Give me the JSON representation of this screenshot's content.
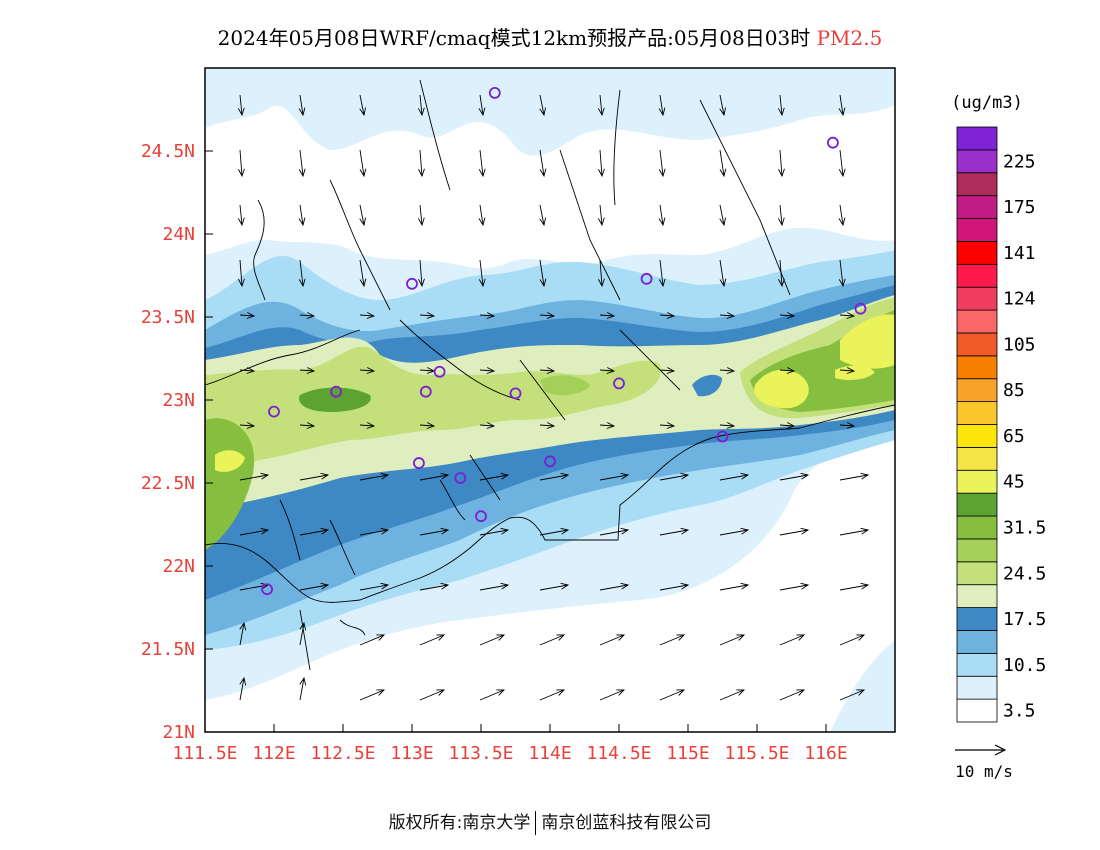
{
  "title": {
    "main": "2024年05月08日WRF/cmaq模式12km预报产品:05月08日03时",
    "species": "PM2.5",
    "species_color": "#e8403a"
  },
  "map": {
    "lon_ticks": [
      111.5,
      112,
      112.5,
      113,
      113.5,
      114,
      114.5,
      115,
      115.5,
      116
    ],
    "lon_labels": [
      "111.5E",
      "112E",
      "112.5E",
      "113E",
      "113.5E",
      "114E",
      "114.5E",
      "115E",
      "115.5E",
      "116E"
    ],
    "lat_ticks": [
      21,
      21.5,
      22,
      22.5,
      23,
      23.5,
      24,
      24.5
    ],
    "lat_labels": [
      "21N",
      "21.5N",
      "22N",
      "22.5N",
      "23N",
      "23.5N",
      "24N",
      "24.5N"
    ],
    "lon_range": [
      111.5,
      116.5
    ],
    "lat_range": [
      21,
      25
    ],
    "tick_label_color": "#e8403a",
    "stations": [
      {
        "lon": 113.6,
        "lat": 24.85
      },
      {
        "lon": 116.05,
        "lat": 24.55
      },
      {
        "lon": 113.0,
        "lat": 23.7
      },
      {
        "lon": 114.7,
        "lat": 23.73
      },
      {
        "lon": 116.25,
        "lat": 23.55
      },
      {
        "lon": 112.45,
        "lat": 23.05
      },
      {
        "lon": 112.0,
        "lat": 22.93
      },
      {
        "lon": 113.1,
        "lat": 23.05
      },
      {
        "lon": 113.2,
        "lat": 23.17
      },
      {
        "lon": 113.75,
        "lat": 23.04
      },
      {
        "lon": 114.5,
        "lat": 23.1
      },
      {
        "lon": 113.05,
        "lat": 22.62
      },
      {
        "lon": 113.35,
        "lat": 22.53
      },
      {
        "lon": 113.5,
        "lat": 22.3
      },
      {
        "lon": 114.0,
        "lat": 22.63
      },
      {
        "lon": 115.25,
        "lat": 22.78
      },
      {
        "lon": 111.95,
        "lat": 21.86
      }
    ],
    "station_color": "#7a1fd6"
  },
  "legend": {
    "unit": "(ug/m3)",
    "levels_bottom_to_top": [
      {
        "color": "#ffffff",
        "label": "3.5"
      },
      {
        "color": "#dcf1fb",
        "label": ""
      },
      {
        "color": "#a9dcf5",
        "label": "10.5"
      },
      {
        "color": "#6eb3e0",
        "label": ""
      },
      {
        "color": "#3e88c4",
        "label": "17.5"
      },
      {
        "color": "#dfeebf",
        "label": ""
      },
      {
        "color": "#c4e07b",
        "label": "24.5"
      },
      {
        "color": "#a2d059",
        "label": ""
      },
      {
        "color": "#86bf3f",
        "label": "31.5"
      },
      {
        "color": "#5da332",
        "label": ""
      },
      {
        "color": "#eaf35a",
        "label": "45"
      },
      {
        "color": "#f4e444",
        "label": ""
      },
      {
        "color": "#fce50a",
        "label": "65"
      },
      {
        "color": "#fbc62b",
        "label": ""
      },
      {
        "color": "#f8a22a",
        "label": "85"
      },
      {
        "color": "#f77f00",
        "label": ""
      },
      {
        "color": "#f05a28",
        "label": "105"
      },
      {
        "color": "#fb6768",
        "label": ""
      },
      {
        "color": "#f13d5e",
        "label": "124"
      },
      {
        "color": "#ff1a4b",
        "label": ""
      },
      {
        "color": "#ff0000",
        "label": "141"
      },
      {
        "color": "#d21679",
        "label": ""
      },
      {
        "color": "#c11b84",
        "label": "175"
      },
      {
        "color": "#b02c5a",
        "label": ""
      },
      {
        "color": "#9a2fc9",
        "label": "225"
      },
      {
        "color": "#7e24d6",
        "label": ""
      }
    ],
    "wind_ref_label": "10 m/s"
  },
  "footer": {
    "left": "版权所有:南京大学",
    "right": "南京创蓝科技有限公司"
  }
}
